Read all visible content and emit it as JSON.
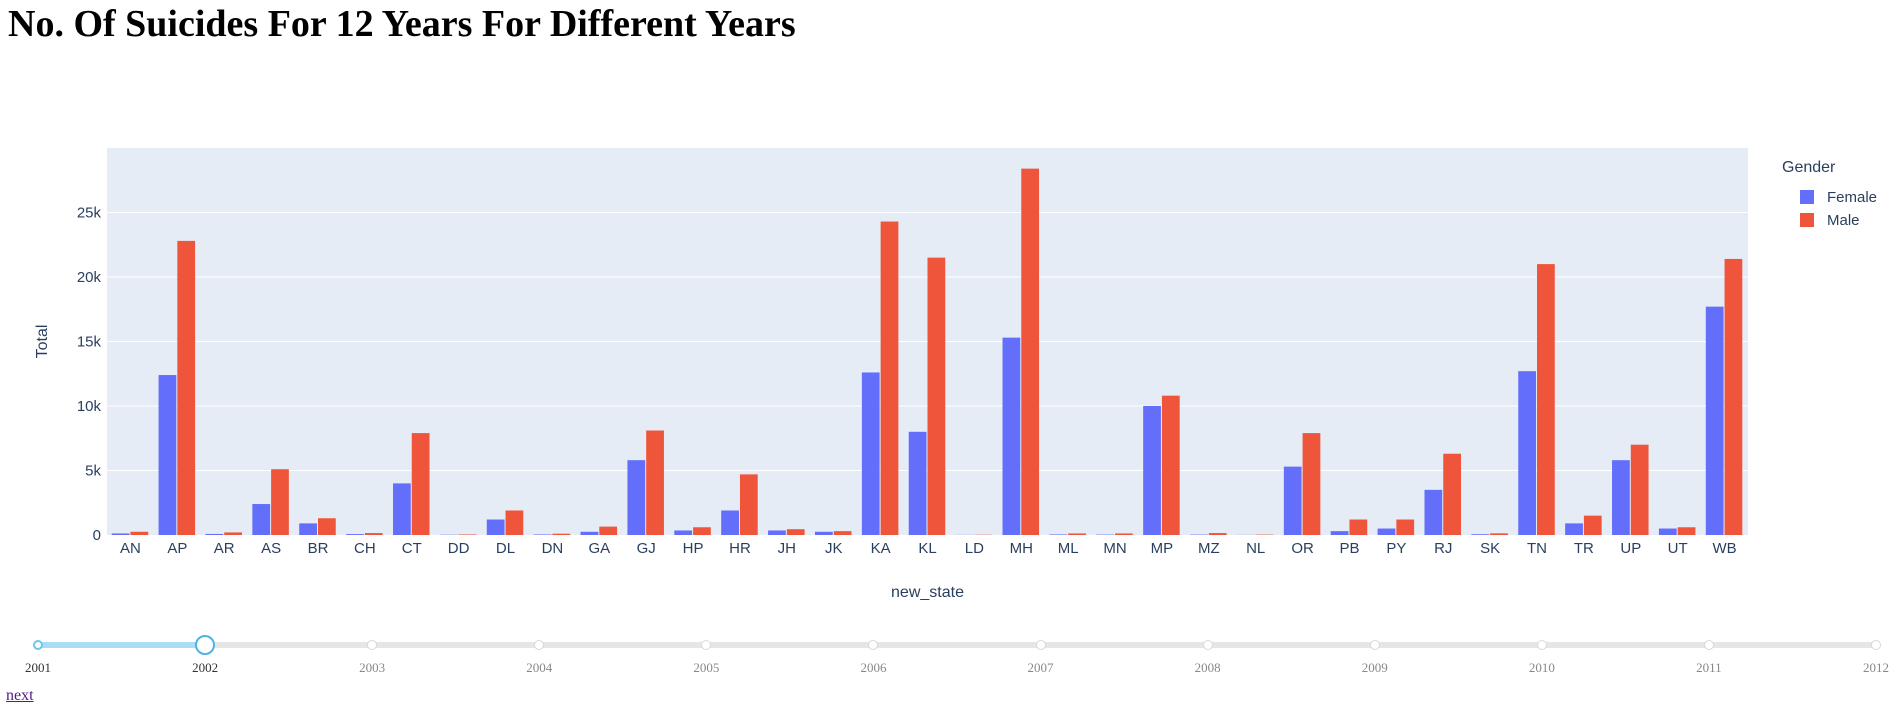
{
  "page": {
    "title": "No. Of Suicides For 12 Years For Different Years",
    "next_label": "next"
  },
  "chart_data": {
    "type": "bar",
    "xlabel": "new_state",
    "ylabel": "Total",
    "ylim": [
      0,
      30000
    ],
    "yticks": [
      0,
      5000,
      10000,
      15000,
      20000,
      25000
    ],
    "ytick_labels": [
      "0",
      "5k",
      "10k",
      "15k",
      "20k",
      "25k"
    ],
    "legend_title": "Gender",
    "legend_position": "top-right",
    "grid": true,
    "categories": [
      "AN",
      "AP",
      "AR",
      "AS",
      "BR",
      "CH",
      "CT",
      "DD",
      "DL",
      "DN",
      "GA",
      "GJ",
      "HP",
      "HR",
      "JH",
      "JK",
      "KA",
      "KL",
      "LD",
      "MH",
      "ML",
      "MN",
      "MP",
      "MZ",
      "NL",
      "OR",
      "PB",
      "PY",
      "RJ",
      "SK",
      "TN",
      "TR",
      "UP",
      "UT",
      "WB"
    ],
    "series": [
      {
        "name": "Female",
        "color": "#636efa",
        "values": [
          120,
          12400,
          80,
          2400,
          900,
          70,
          4000,
          20,
          1200,
          40,
          250,
          5800,
          350,
          1900,
          350,
          250,
          12600,
          8000,
          10,
          15300,
          40,
          30,
          10000,
          30,
          10,
          5300,
          300,
          500,
          3500,
          60,
          12700,
          900,
          5800,
          500,
          17700
        ]
      },
      {
        "name": "Male",
        "color": "#ef553b",
        "values": [
          250,
          22800,
          200,
          5100,
          1300,
          150,
          7900,
          40,
          1900,
          100,
          650,
          8100,
          600,
          4700,
          450,
          300,
          24300,
          21500,
          20,
          28400,
          120,
          120,
          10800,
          150,
          30,
          7900,
          1200,
          1200,
          6300,
          130,
          21000,
          1500,
          7000,
          600,
          21400
        ]
      }
    ]
  },
  "slider": {
    "years": [
      "2001",
      "2002",
      "2003",
      "2004",
      "2005",
      "2006",
      "2007",
      "2008",
      "2009",
      "2010",
      "2011",
      "2012"
    ],
    "selected": "2002",
    "selected_index": 1
  }
}
